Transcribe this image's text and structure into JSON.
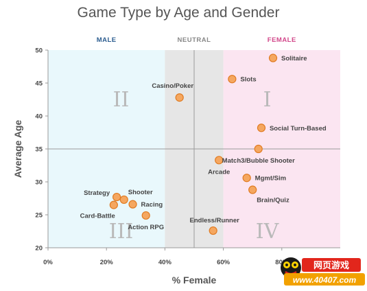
{
  "chart_data": {
    "type": "scatter",
    "title": "Game Type by Age and Gender",
    "xlabel": "% Female",
    "ylabel": "Average Age",
    "xlim": [
      0,
      100
    ],
    "ylim": [
      20,
      50
    ],
    "x_ticks": [
      0,
      20,
      40,
      60,
      80
    ],
    "x_tick_labels": [
      "0%",
      "20%",
      "40%",
      "60%",
      "80%"
    ],
    "y_ticks": [
      20,
      25,
      30,
      35,
      40,
      45,
      50
    ],
    "y_tick_labels": [
      "20",
      "25",
      "30",
      "35",
      "40",
      "45",
      "50"
    ],
    "zones": [
      {
        "label": "MALE",
        "from": 0,
        "to": 40,
        "fill": "#e9f8fc",
        "text_color": "#2b5c8f"
      },
      {
        "label": "NEUTRAL",
        "from": 40,
        "to": 60,
        "fill": "#e6e6e6",
        "text_color": "#888888"
      },
      {
        "label": "FEMALE",
        "from": 60,
        "to": 100,
        "fill": "#fbe5f1",
        "text_color": "#d2478a"
      }
    ],
    "divider_x": 50,
    "divider_y": 35,
    "quadrants": [
      {
        "label": "I",
        "x": 75,
        "y": 42.5
      },
      {
        "label": "II",
        "x": 25,
        "y": 42.5
      },
      {
        "label": "III",
        "x": 25,
        "y": 22.5
      },
      {
        "label": "IV",
        "x": 75,
        "y": 22.5
      }
    ],
    "point_color": "#f5a760",
    "point_stroke": "#e07b22",
    "points": [
      {
        "name": "Solitaire",
        "x": 77,
        "y": 48.8,
        "label_pos": "right"
      },
      {
        "name": "Slots",
        "x": 63,
        "y": 45.6,
        "label_pos": "right"
      },
      {
        "name": "Casino/Poker",
        "x": 45,
        "y": 42.8,
        "label_pos": "above-left"
      },
      {
        "name": "Social Turn-Based",
        "x": 73,
        "y": 38.2,
        "label_pos": "right"
      },
      {
        "name": "Match3/Bubble Shooter",
        "x": 72,
        "y": 35.0,
        "label_pos": "below"
      },
      {
        "name": "Arcade",
        "x": 58.5,
        "y": 33.3,
        "label_pos": "below"
      },
      {
        "name": "Mgmt/Sim",
        "x": 68,
        "y": 30.6,
        "label_pos": "right"
      },
      {
        "name": "Brain/Quiz",
        "x": 70,
        "y": 28.8,
        "label_pos": "below-right"
      },
      {
        "name": "Endless/Runner",
        "x": 56.5,
        "y": 22.6,
        "label_pos": "above"
      },
      {
        "name": "Strategy",
        "x": 23.5,
        "y": 27.7,
        "label_pos": "left"
      },
      {
        "name": "Shooter",
        "x": 26,
        "y": 27.3,
        "label_pos": "upper-right"
      },
      {
        "name": "Racing",
        "x": 29,
        "y": 26.6,
        "label_pos": "right"
      },
      {
        "name": "Card-Battle",
        "x": 22.5,
        "y": 26.5,
        "label_pos": "below-left"
      },
      {
        "name": "Action RPG",
        "x": 33.5,
        "y": 24.9,
        "label_pos": "below"
      }
    ]
  },
  "watermark": {
    "cn_text": "网页游戏",
    "url_text": "www.40407.com",
    "icon": "cartoon-mascot-logo"
  }
}
